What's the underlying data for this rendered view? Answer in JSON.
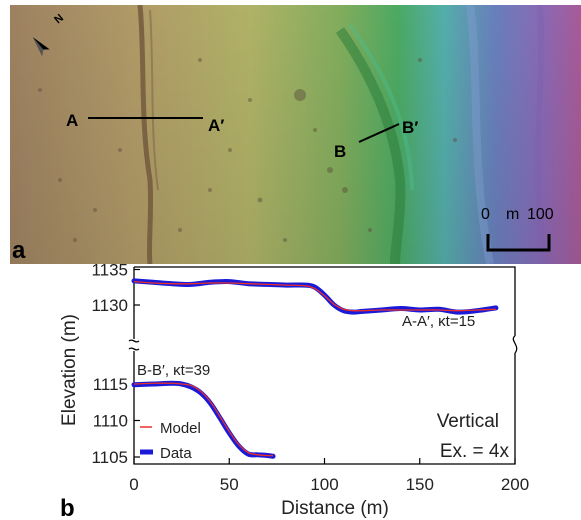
{
  "panel_a": {
    "label": "a",
    "north_label": "N",
    "profile_a": {
      "start_label": "A",
      "end_label": "A′"
    },
    "profile_b": {
      "start_label": "B",
      "end_label": "B′"
    },
    "scale_bar": {
      "zero_label": "0",
      "end_label": "100",
      "unit": "m"
    }
  },
  "panel_b": {
    "label": "b",
    "annotation_line1": "Vertical",
    "annotation_line2": "Ex. = 4x"
  },
  "chart_data": {
    "type": "line",
    "xlabel": "Distance (m)",
    "ylabel": "Elevation (m)",
    "xlim": [
      0,
      200
    ],
    "y_ticks_upper": [
      1130,
      1135
    ],
    "y_ticks_lower": [
      1105,
      1110,
      1115
    ],
    "x_ticks": [
      0,
      50,
      100,
      150,
      200
    ],
    "broken_axis": true,
    "legend": {
      "placement": "left",
      "entries": [
        "Model",
        "Data"
      ]
    },
    "colors": {
      "model": "#e8302a",
      "data": "#1a1ad8"
    },
    "series": [
      {
        "name": "A-A′, κt=15",
        "x": [
          0,
          10,
          20,
          30,
          40,
          50,
          60,
          70,
          80,
          90,
          95,
          100,
          105,
          110,
          115,
          120,
          130,
          140,
          150,
          160,
          170,
          180,
          190
        ],
        "data": [
          1133.4,
          1133.2,
          1133.0,
          1132.9,
          1133.2,
          1133.3,
          1133.0,
          1132.9,
          1132.8,
          1132.8,
          1132.5,
          1131.4,
          1130.0,
          1129.2,
          1129.0,
          1129.1,
          1129.3,
          1129.5,
          1129.3,
          1129.4,
          1129.0,
          1129.2,
          1129.6
        ],
        "model": [
          1133.3,
          1133.1,
          1133.0,
          1133.0,
          1133.1,
          1133.1,
          1133.0,
          1132.9,
          1132.8,
          1132.7,
          1132.3,
          1131.3,
          1130.1,
          1129.4,
          1129.2,
          1129.2,
          1129.3,
          1129.3,
          1129.3,
          1129.3,
          1129.2,
          1129.3,
          1129.4
        ]
      },
      {
        "name": "B-B′, κt=39",
        "x": [
          0,
          10,
          20,
          25,
          30,
          35,
          40,
          45,
          50,
          55,
          60,
          65,
          70,
          73
        ],
        "data": [
          1114.9,
          1115.0,
          1115.1,
          1115.0,
          1114.6,
          1113.8,
          1112.4,
          1110.4,
          1108.3,
          1106.5,
          1105.4,
          1105.3,
          1105.2,
          1105.1
        ],
        "model": [
          1115.0,
          1115.1,
          1115.1,
          1115.0,
          1114.8,
          1114.0,
          1112.6,
          1110.6,
          1108.5,
          1106.7,
          1105.6,
          1105.3,
          1105.2,
          1105.2
        ]
      }
    ]
  }
}
